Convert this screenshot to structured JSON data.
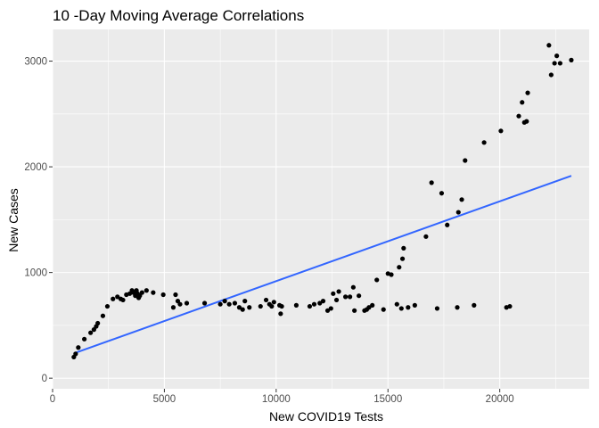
{
  "chart_data": {
    "type": "scatter",
    "title": "10 -Day Moving Average Correlations",
    "xlabel": "New COVID19 Tests",
    "ylabel": "New Cases",
    "xlim": [
      0,
      24000
    ],
    "ylim": [
      -100,
      3300
    ],
    "x_ticks": [
      0,
      5000,
      10000,
      15000,
      20000
    ],
    "x_tick_labels": [
      "0",
      "5000",
      "10000",
      "15000",
      "20000"
    ],
    "y_ticks": [
      0,
      1000,
      2000,
      3000
    ],
    "y_tick_labels": [
      "0",
      "1000",
      "2000",
      "3000"
    ],
    "grid": true,
    "legend": "none",
    "colors": {
      "panel_background": "#ebebeb",
      "grid_major": "#ffffff",
      "points": "#000000",
      "fit_line": "#3366ff",
      "tick_text": "#4d4d4d"
    },
    "points": [
      {
        "x": 950,
        "y": 200
      },
      {
        "x": 1030,
        "y": 230
      },
      {
        "x": 1150,
        "y": 290
      },
      {
        "x": 1420,
        "y": 370
      },
      {
        "x": 1700,
        "y": 430
      },
      {
        "x": 1850,
        "y": 460
      },
      {
        "x": 1950,
        "y": 490
      },
      {
        "x": 2020,
        "y": 520
      },
      {
        "x": 2250,
        "y": 590
      },
      {
        "x": 2450,
        "y": 680
      },
      {
        "x": 2700,
        "y": 750
      },
      {
        "x": 2900,
        "y": 770
      },
      {
        "x": 3050,
        "y": 750
      },
      {
        "x": 3150,
        "y": 740
      },
      {
        "x": 3300,
        "y": 790
      },
      {
        "x": 3450,
        "y": 800
      },
      {
        "x": 3550,
        "y": 830
      },
      {
        "x": 3620,
        "y": 810
      },
      {
        "x": 3700,
        "y": 780
      },
      {
        "x": 3750,
        "y": 830
      },
      {
        "x": 3800,
        "y": 800
      },
      {
        "x": 3850,
        "y": 760
      },
      {
        "x": 3900,
        "y": 780
      },
      {
        "x": 4000,
        "y": 810
      },
      {
        "x": 4200,
        "y": 830
      },
      {
        "x": 4500,
        "y": 810
      },
      {
        "x": 4950,
        "y": 790
      },
      {
        "x": 5400,
        "y": 670
      },
      {
        "x": 5500,
        "y": 790
      },
      {
        "x": 5600,
        "y": 730
      },
      {
        "x": 5700,
        "y": 700
      },
      {
        "x": 6000,
        "y": 710
      },
      {
        "x": 6800,
        "y": 710
      },
      {
        "x": 7500,
        "y": 700
      },
      {
        "x": 7700,
        "y": 730
      },
      {
        "x": 7900,
        "y": 700
      },
      {
        "x": 8150,
        "y": 710
      },
      {
        "x": 8350,
        "y": 670
      },
      {
        "x": 8500,
        "y": 650
      },
      {
        "x": 8600,
        "y": 730
      },
      {
        "x": 8800,
        "y": 670
      },
      {
        "x": 9300,
        "y": 680
      },
      {
        "x": 9550,
        "y": 740
      },
      {
        "x": 9700,
        "y": 700
      },
      {
        "x": 9800,
        "y": 680
      },
      {
        "x": 9900,
        "y": 720
      },
      {
        "x": 10150,
        "y": 690
      },
      {
        "x": 10200,
        "y": 610
      },
      {
        "x": 10250,
        "y": 680
      },
      {
        "x": 10900,
        "y": 690
      },
      {
        "x": 11500,
        "y": 680
      },
      {
        "x": 11700,
        "y": 700
      },
      {
        "x": 11950,
        "y": 710
      },
      {
        "x": 12100,
        "y": 730
      },
      {
        "x": 12300,
        "y": 640
      },
      {
        "x": 12450,
        "y": 660
      },
      {
        "x": 12550,
        "y": 800
      },
      {
        "x": 12700,
        "y": 740
      },
      {
        "x": 12800,
        "y": 820
      },
      {
        "x": 13100,
        "y": 770
      },
      {
        "x": 13300,
        "y": 770
      },
      {
        "x": 13450,
        "y": 860
      },
      {
        "x": 13500,
        "y": 640
      },
      {
        "x": 13700,
        "y": 780
      },
      {
        "x": 13950,
        "y": 640
      },
      {
        "x": 14050,
        "y": 650
      },
      {
        "x": 14150,
        "y": 670
      },
      {
        "x": 14300,
        "y": 690
      },
      {
        "x": 14500,
        "y": 930
      },
      {
        "x": 14800,
        "y": 650
      },
      {
        "x": 15000,
        "y": 990
      },
      {
        "x": 15150,
        "y": 980
      },
      {
        "x": 15400,
        "y": 700
      },
      {
        "x": 15500,
        "y": 1050
      },
      {
        "x": 15600,
        "y": 660
      },
      {
        "x": 15650,
        "y": 1130
      },
      {
        "x": 15700,
        "y": 1230
      },
      {
        "x": 15900,
        "y": 670
      },
      {
        "x": 16200,
        "y": 690
      },
      {
        "x": 16700,
        "y": 1340
      },
      {
        "x": 16950,
        "y": 1850
      },
      {
        "x": 17200,
        "y": 660
      },
      {
        "x": 17400,
        "y": 1750
      },
      {
        "x": 17650,
        "y": 1450
      },
      {
        "x": 18100,
        "y": 670
      },
      {
        "x": 18150,
        "y": 1570
      },
      {
        "x": 18300,
        "y": 1690
      },
      {
        "x": 18450,
        "y": 2060
      },
      {
        "x": 18850,
        "y": 690
      },
      {
        "x": 19300,
        "y": 2230
      },
      {
        "x": 20050,
        "y": 2340
      },
      {
        "x": 20300,
        "y": 670
      },
      {
        "x": 20450,
        "y": 680
      },
      {
        "x": 20850,
        "y": 2480
      },
      {
        "x": 21000,
        "y": 2610
      },
      {
        "x": 21100,
        "y": 2420
      },
      {
        "x": 21200,
        "y": 2430
      },
      {
        "x": 21250,
        "y": 2700
      },
      {
        "x": 22200,
        "y": 3150
      },
      {
        "x": 22300,
        "y": 2870
      },
      {
        "x": 22450,
        "y": 2980
      },
      {
        "x": 22550,
        "y": 3050
      },
      {
        "x": 22700,
        "y": 2980
      },
      {
        "x": 23200,
        "y": 3010
      }
    ],
    "fit_line": {
      "x": [
        950,
        23200
      ],
      "y": [
        235,
        1915
      ]
    }
  }
}
